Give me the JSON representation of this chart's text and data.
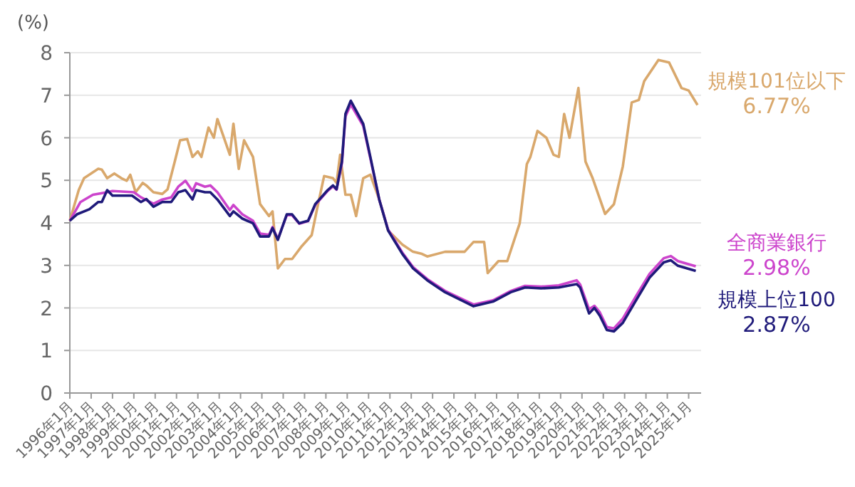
{
  "chart_data": {
    "type": "line",
    "ylabel": "(%)",
    "ylim": [
      0,
      8
    ],
    "yticks": [
      0,
      1,
      2,
      3,
      4,
      5,
      6,
      7,
      8
    ],
    "xlim": [
      "1996-01",
      "2025-08"
    ],
    "xticks": [
      {
        "value": "1996-01",
        "label": "1996年1月"
      },
      {
        "value": "1997-01",
        "label": "1997年1月"
      },
      {
        "value": "1998-01",
        "label": "1998年1月"
      },
      {
        "value": "1999-01",
        "label": "1999年1月"
      },
      {
        "value": "2000-01",
        "label": "2000年1月"
      },
      {
        "value": "2001-01",
        "label": "2001年1月"
      },
      {
        "value": "2002-01",
        "label": "2002年1月"
      },
      {
        "value": "2003-01",
        "label": "2003年1月"
      },
      {
        "value": "2004-01",
        "label": "2004年1月"
      },
      {
        "value": "2005-01",
        "label": "2005年1月"
      },
      {
        "value": "2006-01",
        "label": "2006年1月"
      },
      {
        "value": "2007-01",
        "label": "2007年1月"
      },
      {
        "value": "2008-01",
        "label": "2008年1月"
      },
      {
        "value": "2009-01",
        "label": "2009年1月"
      },
      {
        "value": "2010-01",
        "label": "2010年1月"
      },
      {
        "value": "2011-01",
        "label": "2011年1月"
      },
      {
        "value": "2012-01",
        "label": "2012年1月"
      },
      {
        "value": "2013-01",
        "label": "2013年1月"
      },
      {
        "value": "2014-01",
        "label": "2014年1月"
      },
      {
        "value": "2015-01",
        "label": "2015年1月"
      },
      {
        "value": "2016-01",
        "label": "2016年1月"
      },
      {
        "value": "2017-01",
        "label": "2017年1月"
      },
      {
        "value": "2018-01",
        "label": "2018年1月"
      },
      {
        "value": "2019-01",
        "label": "2019年1月"
      },
      {
        "value": "2020-01",
        "label": "2020年1月"
      },
      {
        "value": "2021-01",
        "label": "2021年1月"
      },
      {
        "value": "2022-01",
        "label": "2022年1月"
      },
      {
        "value": "2023-01",
        "label": "2023年1月"
      },
      {
        "value": "2024-01",
        "label": "2024年1月"
      },
      {
        "value": "2025-01",
        "label": "2025年1月"
      }
    ],
    "grid": "y",
    "marker": "none",
    "line_style": "solid",
    "series": [
      {
        "name": "規模101位以下",
        "color": "#d9a86c",
        "x": [
          "1996-01",
          "1996-06",
          "1996-09",
          "1997-05",
          "1997-07",
          "1997-10",
          "1998-02",
          "1998-06",
          "1998-09",
          "1998-11",
          "1999-02",
          "1999-06",
          "1999-08",
          "1999-12",
          "2000-05",
          "2000-08",
          "2000-12",
          "2001-03",
          "2001-07",
          "2001-10",
          "2002-01",
          "2002-03",
          "2002-07",
          "2002-10",
          "2002-12",
          "2003-07",
          "2003-09",
          "2003-12",
          "2004-03",
          "2004-08",
          "2004-12",
          "2005-05",
          "2005-07",
          "2005-10",
          "2006-02",
          "2006-06",
          "2006-11",
          "2007-05",
          "2007-08",
          "2007-12",
          "2008-05",
          "2008-07",
          "2008-09",
          "2008-12",
          "2009-03",
          "2009-06",
          "2009-10",
          "2010-02",
          "2010-07",
          "2010-12",
          "2011-08",
          "2012-02",
          "2012-07",
          "2012-10",
          "2013-08",
          "2014-07",
          "2014-12",
          "2015-06",
          "2015-08",
          "2016-02",
          "2016-07",
          "2017-02",
          "2017-06",
          "2017-08",
          "2017-12",
          "2018-05",
          "2018-09",
          "2018-12",
          "2019-03",
          "2019-06",
          "2019-11",
          "2020-03",
          "2020-07",
          "2021-02",
          "2021-07",
          "2021-12",
          "2022-05",
          "2022-09",
          "2022-12",
          "2023-08",
          "2024-02",
          "2024-09",
          "2025-01",
          "2025-06"
        ],
        "values": [
          4.05,
          4.77,
          5.05,
          5.27,
          5.25,
          5.05,
          5.16,
          5.05,
          4.99,
          5.13,
          4.72,
          4.94,
          4.88,
          4.72,
          4.68,
          4.79,
          5.44,
          5.94,
          5.97,
          5.55,
          5.68,
          5.55,
          6.24,
          6.0,
          6.44,
          5.6,
          6.33,
          5.27,
          5.94,
          5.55,
          4.44,
          4.16,
          4.27,
          2.93,
          3.15,
          3.15,
          3.43,
          3.71,
          4.32,
          5.1,
          5.05,
          4.94,
          5.6,
          4.66,
          4.66,
          4.16,
          5.05,
          5.13,
          4.55,
          3.82,
          3.49,
          3.32,
          3.27,
          3.21,
          3.32,
          3.32,
          3.55,
          3.55,
          2.82,
          3.1,
          3.1,
          3.99,
          5.38,
          5.55,
          6.16,
          6.0,
          5.6,
          5.55,
          6.56,
          6.0,
          7.17,
          5.44,
          5.05,
          4.21,
          4.44,
          5.33,
          6.83,
          6.89,
          7.33,
          7.83,
          7.77,
          7.17,
          7.11,
          6.77
        ]
      },
      {
        "name": "全商業銀行",
        "color": "#cc44cc",
        "x": [
          "1996-01",
          "1996-07",
          "1997-02",
          "1997-10",
          "1998-01",
          "1999-01",
          "1999-05",
          "1999-12",
          "2000-05",
          "2000-10",
          "2001-02",
          "2001-06",
          "2001-10",
          "2001-12",
          "2002-05",
          "2002-08",
          "2002-12",
          "2003-07",
          "2003-09",
          "2004-02",
          "2004-08",
          "2004-12",
          "2005-05",
          "2005-07",
          "2005-10",
          "2006-03",
          "2006-06",
          "2006-10",
          "2007-03",
          "2007-07",
          "2008-02",
          "2008-05",
          "2008-07",
          "2008-10",
          "2008-12",
          "2009-03",
          "2009-10",
          "2010-02",
          "2010-07",
          "2010-12",
          "2011-08",
          "2012-02",
          "2012-10",
          "2013-08",
          "2014-12",
          "2015-11",
          "2016-09",
          "2017-05",
          "2018-02",
          "2018-12",
          "2019-10",
          "2019-12",
          "2020-05",
          "2020-08",
          "2020-11",
          "2021-03",
          "2021-07",
          "2021-12",
          "2022-07",
          "2023-03",
          "2023-11",
          "2024-03",
          "2024-07",
          "2025-05"
        ],
        "values": [
          4.05,
          4.49,
          4.66,
          4.72,
          4.75,
          4.72,
          4.6,
          4.45,
          4.55,
          4.6,
          4.85,
          4.99,
          4.75,
          4.93,
          4.85,
          4.88,
          4.72,
          4.3,
          4.42,
          4.2,
          4.05,
          3.75,
          3.72,
          3.9,
          3.62,
          4.18,
          4.18,
          3.98,
          4.04,
          4.42,
          4.75,
          4.86,
          4.78,
          5.4,
          6.5,
          6.78,
          6.28,
          5.52,
          4.55,
          3.84,
          3.3,
          2.96,
          2.68,
          2.4,
          2.08,
          2.18,
          2.4,
          2.52,
          2.5,
          2.53,
          2.65,
          2.55,
          1.97,
          2.05,
          1.9,
          1.55,
          1.52,
          1.75,
          2.25,
          2.8,
          3.17,
          3.22,
          3.1,
          2.98
        ]
      },
      {
        "name": "規模上位100",
        "color": "#1f1a7a",
        "x": [
          "1996-01",
          "1996-05",
          "1996-12",
          "1997-05",
          "1997-07",
          "1997-10",
          "1998-01",
          "1998-12",
          "1999-05",
          "1999-08",
          "1999-12",
          "2000-05",
          "2000-10",
          "2001-02",
          "2001-06",
          "2001-10",
          "2001-12",
          "2002-05",
          "2002-08",
          "2002-12",
          "2003-07",
          "2003-09",
          "2004-02",
          "2004-08",
          "2004-12",
          "2005-05",
          "2005-07",
          "2005-10",
          "2006-03",
          "2006-06",
          "2006-10",
          "2007-03",
          "2007-07",
          "2008-02",
          "2008-05",
          "2008-07",
          "2008-10",
          "2008-12",
          "2009-03",
          "2009-10",
          "2010-02",
          "2010-07",
          "2010-12",
          "2011-08",
          "2012-02",
          "2012-10",
          "2013-08",
          "2014-12",
          "2015-11",
          "2016-09",
          "2017-05",
          "2018-02",
          "2018-12",
          "2019-10",
          "2019-12",
          "2020-05",
          "2020-08",
          "2020-11",
          "2021-03",
          "2021-07",
          "2021-12",
          "2022-07",
          "2023-03",
          "2023-11",
          "2024-03",
          "2024-07",
          "2025-05"
        ],
        "values": [
          4.05,
          4.2,
          4.32,
          4.49,
          4.49,
          4.77,
          4.64,
          4.64,
          4.49,
          4.56,
          4.38,
          4.49,
          4.49,
          4.72,
          4.77,
          4.55,
          4.77,
          4.72,
          4.72,
          4.55,
          4.16,
          4.27,
          4.1,
          3.99,
          3.68,
          3.68,
          3.88,
          3.6,
          4.2,
          4.2,
          3.99,
          4.05,
          4.44,
          4.77,
          4.88,
          4.79,
          5.44,
          6.56,
          6.87,
          6.33,
          5.55,
          4.55,
          3.82,
          3.27,
          2.93,
          2.65,
          2.37,
          2.04,
          2.15,
          2.37,
          2.48,
          2.46,
          2.48,
          2.56,
          2.48,
          1.87,
          2.0,
          1.82,
          1.48,
          1.45,
          1.65,
          2.15,
          2.71,
          3.07,
          3.12,
          2.99,
          2.87
        ]
      }
    ],
    "annotations": [
      {
        "text": "6.77%",
        "x": "2025-06",
        "y": 6.77
      },
      {
        "text": "2.98%",
        "x": "2025-05",
        "y": 2.98
      },
      {
        "text": "2.87%",
        "x": "2025-05",
        "y": 2.87
      }
    ]
  }
}
